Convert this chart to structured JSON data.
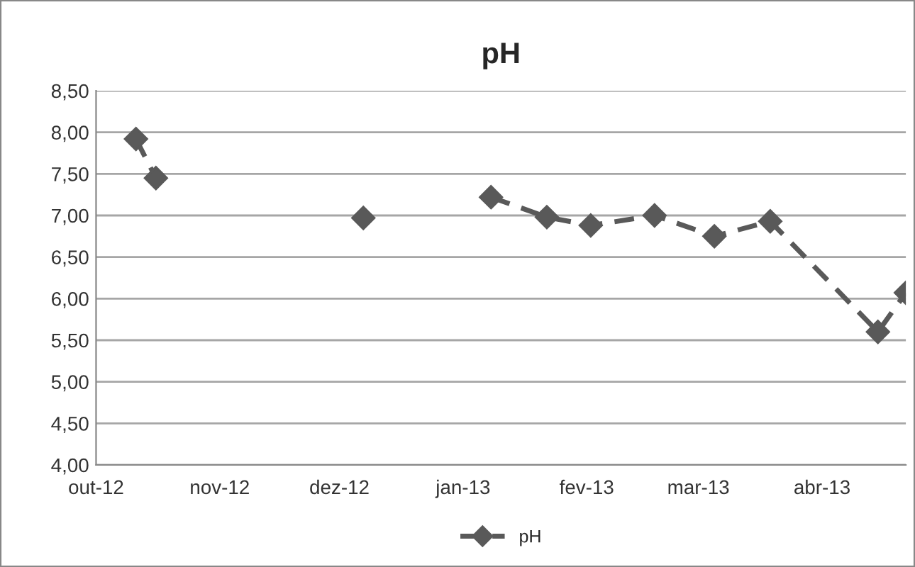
{
  "chart_data": {
    "type": "line",
    "title": "pH",
    "x": [
      "2012-10-11",
      "2012-10-16",
      "2012-11-15",
      "2012-12-07",
      "2012-12-25",
      "2013-01-08",
      "2013-01-22",
      "2013-02-02",
      "2013-02-18",
      "2013-03-05",
      "2013-03-19",
      "2013-04-15",
      "2013-04-22"
    ],
    "series": [
      {
        "name": "pH",
        "color": "#595959",
        "values": [
          7.92,
          7.45,
          null,
          6.97,
          null,
          7.22,
          6.98,
          6.88,
          7.0,
          6.75,
          6.93,
          5.6,
          6.07
        ]
      }
    ],
    "xlim": [
      "2012-10-01",
      "2013-04-22"
    ],
    "xticks": [
      {
        "value": "2012-10-01",
        "label": "out-12"
      },
      {
        "value": "2012-11-01",
        "label": "nov-12"
      },
      {
        "value": "2012-12-01",
        "label": "dez-12"
      },
      {
        "value": "2013-01-01",
        "label": "jan-13"
      },
      {
        "value": "2013-02-01",
        "label": "fev-13"
      },
      {
        "value": "2013-03-01",
        "label": "mar-13"
      },
      {
        "value": "2013-04-01",
        "label": "abr-13"
      }
    ],
    "ylim": [
      4.0,
      8.5
    ],
    "yticks": [
      {
        "value": 4.0,
        "label": "4,00"
      },
      {
        "value": 4.5,
        "label": "4,50"
      },
      {
        "value": 5.0,
        "label": "5,00"
      },
      {
        "value": 5.5,
        "label": "5,50"
      },
      {
        "value": 6.0,
        "label": "6,00"
      },
      {
        "value": 6.5,
        "label": "6,50"
      },
      {
        "value": 7.0,
        "label": "7,00"
      },
      {
        "value": 7.5,
        "label": "7,50"
      },
      {
        "value": 8.0,
        "label": "8,00"
      },
      {
        "value": 8.5,
        "label": "8,50"
      }
    ],
    "grid": "y",
    "legend": "bottom",
    "marker": "diamond",
    "line_style": "dashed"
  }
}
